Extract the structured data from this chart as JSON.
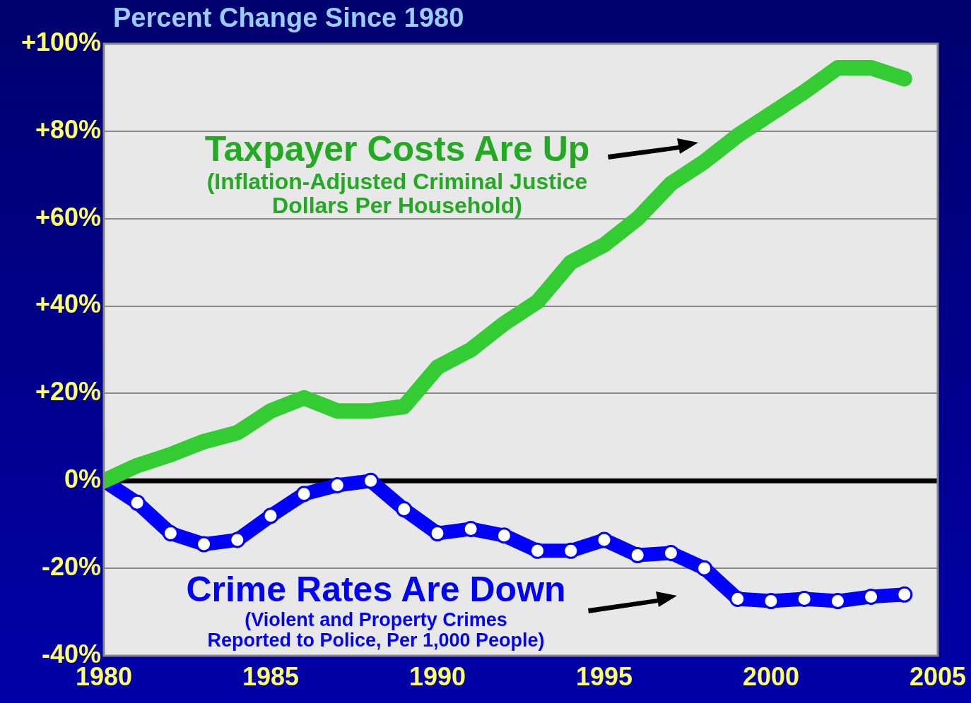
{
  "chart_data": {
    "type": "line",
    "title": "Percent Change Since 1980",
    "x": [
      1980,
      1981,
      1982,
      1983,
      1984,
      1985,
      1986,
      1987,
      1988,
      1989,
      1990,
      1991,
      1992,
      1993,
      1994,
      1995,
      1996,
      1997,
      1998,
      1999,
      2000,
      2001,
      2002,
      2003,
      2004
    ],
    "series": [
      {
        "name": "Taxpayer Costs Are Up",
        "color": "#33cc33",
        "marker": "none",
        "values": [
          0,
          3.5,
          6,
          9,
          11,
          16,
          19,
          16,
          16,
          17,
          26,
          30,
          36,
          41,
          50,
          54,
          60,
          68,
          73,
          79,
          84,
          89,
          94.5,
          94.5,
          92
        ]
      },
      {
        "name": "Crime Rates Are Down",
        "color": "#0000ff",
        "marker": "circle",
        "values": [
          0,
          -5,
          -12,
          -14.5,
          -13.5,
          -8,
          -3,
          -1,
          0,
          -6.5,
          -12,
          -11,
          -12.5,
          -16,
          -16,
          -13.5,
          -17,
          -16.5,
          -20,
          -27,
          -27.5,
          -27,
          -27.5,
          -26.5,
          -26
        ]
      }
    ],
    "annotations": [
      "(Inflation-Adjusted Criminal Justice Dollars Per Household)",
      "(Violent and Property Crimes Reported to Police, Per 1,000 People)"
    ],
    "xlim": [
      1980,
      2005
    ],
    "xticks": [
      1980,
      1985,
      1990,
      1995,
      2000,
      2005
    ],
    "ylim": [
      -40,
      100
    ],
    "yticks": [
      {
        "value": -40,
        "label": "-40%"
      },
      {
        "value": -20,
        "label": "-20%"
      },
      {
        "value": 0,
        "label": "0%"
      },
      {
        "value": 20,
        "label": "+20%"
      },
      {
        "value": 40,
        "label": "+40%"
      },
      {
        "value": 60,
        "label": "+60%"
      },
      {
        "value": 80,
        "label": "+80%"
      },
      {
        "value": 100,
        "label": "+100%"
      }
    ],
    "ref_lines": [
      {
        "axis": "y",
        "value": 0,
        "color": "#000000"
      }
    ],
    "grid": "y"
  }
}
